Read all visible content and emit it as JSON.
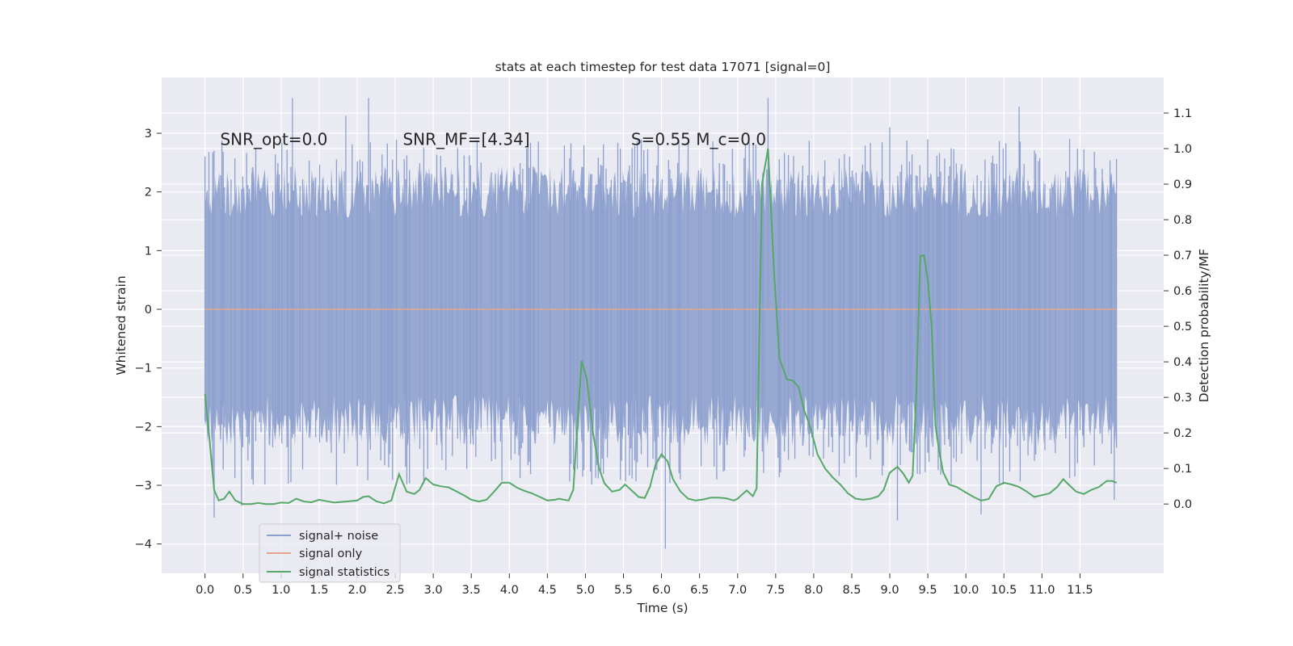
{
  "chart_data": {
    "type": "line",
    "title": "stats at each timestep for test data 17071 [signal=0]",
    "xlabel": "Time (s)",
    "ylabel": "Whitened strain",
    "y2label": "Detection probability/MF",
    "xlim": [
      -0.57,
      12.6
    ],
    "ylim": [
      -4.5,
      3.95
    ],
    "y2lim": [
      -0.195,
      1.2
    ],
    "x_ticks": [
      0.0,
      0.5,
      1.0,
      1.5,
      2.0,
      2.5,
      3.0,
      3.5,
      4.0,
      4.5,
      5.0,
      5.5,
      6.0,
      6.5,
      7.0,
      7.5,
      8.0,
      8.5,
      9.0,
      9.5,
      10.0,
      10.5,
      11.0,
      11.5
    ],
    "x_tick_labels": [
      "0.0",
      "0.5",
      "1.0",
      "1.5",
      "2.0",
      "2.5",
      "3.0",
      "3.5",
      "4.0",
      "4.5",
      "5.0",
      "5.5",
      "6.0",
      "6.5",
      "7.0",
      "7.5",
      "8.0",
      "8.5",
      "9.0",
      "9.5",
      "10.0",
      "10.5",
      "11.0",
      "11.5"
    ],
    "y_ticks": [
      -4,
      -3,
      -2,
      -1,
      0,
      1,
      2,
      3
    ],
    "y_tick_labels": [
      "−4",
      "−3",
      "−2",
      "−1",
      "0",
      "1",
      "2",
      "3"
    ],
    "y2_ticks": [
      0.0,
      0.1,
      0.2,
      0.3,
      0.4,
      0.5,
      0.6,
      0.7,
      0.8,
      0.9,
      1.0,
      1.1
    ],
    "y2_tick_labels": [
      "0.0",
      "0.1",
      "0.2",
      "0.3",
      "0.4",
      "0.5",
      "0.6",
      "0.7",
      "0.8",
      "0.9",
      "1.0",
      "1.1"
    ],
    "grid": true,
    "legend_position": "lower-left",
    "annotations": [
      {
        "text": "SNR_opt=0.0",
        "x": 0.2,
        "y": 2.8
      },
      {
        "text": "SNR_MF=[4.34]",
        "x": 2.6,
        "y": 2.8
      },
      {
        "text": "S=0.55   M_c=0.0",
        "x": 5.6,
        "y": 2.8
      }
    ],
    "series": [
      {
        "name": "signal+ noise",
        "color": "#8c9fd0",
        "axis": "left",
        "x_range": [
          0.0,
          11.98
        ],
        "approx_std": 0.9,
        "approx_range": [
          -4.08,
          3.6
        ],
        "notable_peaks": [
          {
            "x": 1.15,
            "y": 3.6
          },
          {
            "x": 1.85,
            "y": 3.3
          },
          {
            "x": 2.15,
            "y": 3.6
          },
          {
            "x": 7.4,
            "y": 3.6
          },
          {
            "x": 9.0,
            "y": 3.1
          },
          {
            "x": 10.7,
            "y": 3.45
          },
          {
            "x": 0.12,
            "y": -3.55
          },
          {
            "x": 0.48,
            "y": -3.35
          },
          {
            "x": 6.05,
            "y": -4.08
          },
          {
            "x": 9.1,
            "y": -3.6
          },
          {
            "x": 10.2,
            "y": -3.5
          },
          {
            "x": 11.95,
            "y": -3.25
          }
        ]
      },
      {
        "name": "signal only",
        "color": "#e4a58c",
        "axis": "left",
        "x": [
          0.0,
          11.98
        ],
        "y": [
          0.0,
          0.0
        ]
      },
      {
        "name": "signal statistics",
        "color": "#55a868",
        "axis": "right",
        "x": [
          0.0,
          0.06,
          0.12,
          0.18,
          0.25,
          0.32,
          0.4,
          0.5,
          0.6,
          0.7,
          0.8,
          0.9,
          1.0,
          1.1,
          1.2,
          1.3,
          1.4,
          1.5,
          1.6,
          1.7,
          1.8,
          1.9,
          2.0,
          2.08,
          2.15,
          2.25,
          2.35,
          2.45,
          2.55,
          2.65,
          2.75,
          2.82,
          2.9,
          3.0,
          3.1,
          3.2,
          3.3,
          3.4,
          3.5,
          3.6,
          3.7,
          3.8,
          3.9,
          4.0,
          4.1,
          4.2,
          4.3,
          4.4,
          4.5,
          4.6,
          4.65,
          4.72,
          4.78,
          4.84,
          4.9,
          4.95,
          5.02,
          5.1,
          5.18,
          5.25,
          5.35,
          5.45,
          5.52,
          5.6,
          5.7,
          5.78,
          5.85,
          5.92,
          6.0,
          6.08,
          6.15,
          6.25,
          6.35,
          6.45,
          6.55,
          6.65,
          6.75,
          6.85,
          6.95,
          7.0,
          7.05,
          7.12,
          7.2,
          7.25,
          7.32,
          7.4,
          7.48,
          7.55,
          7.65,
          7.72,
          7.8,
          7.88,
          7.95,
          8.05,
          8.15,
          8.25,
          8.35,
          8.45,
          8.55,
          8.65,
          8.75,
          8.85,
          8.92,
          9.0,
          9.1,
          9.18,
          9.25,
          9.3,
          9.35,
          9.4,
          9.45,
          9.5,
          9.55,
          9.6,
          9.65,
          9.7,
          9.78,
          9.88,
          9.98,
          10.1,
          10.2,
          10.3,
          10.4,
          10.5,
          10.6,
          10.7,
          10.8,
          10.9,
          11.0,
          11.1,
          11.2,
          11.28,
          11.35,
          11.45,
          11.55,
          11.65,
          11.75,
          11.85,
          11.92,
          11.98
        ],
        "y": [
          0.31,
          0.18,
          0.04,
          0.01,
          0.015,
          0.035,
          0.01,
          0.0,
          0.0,
          0.003,
          0.0,
          0.0,
          0.004,
          0.003,
          0.015,
          0.007,
          0.005,
          0.012,
          0.008,
          0.004,
          0.006,
          0.008,
          0.01,
          0.02,
          0.022,
          0.008,
          0.002,
          0.01,
          0.084,
          0.035,
          0.028,
          0.04,
          0.073,
          0.055,
          0.05,
          0.047,
          0.036,
          0.025,
          0.012,
          0.007,
          0.012,
          0.035,
          0.06,
          0.06,
          0.046,
          0.037,
          0.03,
          0.02,
          0.01,
          0.012,
          0.015,
          0.012,
          0.01,
          0.04,
          0.24,
          0.403,
          0.35,
          0.2,
          0.1,
          0.058,
          0.035,
          0.04,
          0.055,
          0.04,
          0.02,
          0.017,
          0.05,
          0.11,
          0.14,
          0.12,
          0.07,
          0.035,
          0.015,
          0.01,
          0.013,
          0.018,
          0.018,
          0.016,
          0.01,
          0.015,
          0.025,
          0.038,
          0.022,
          0.044,
          0.9,
          1.0,
          0.65,
          0.41,
          0.35,
          0.348,
          0.33,
          0.26,
          0.22,
          0.14,
          0.1,
          0.075,
          0.055,
          0.03,
          0.015,
          0.012,
          0.015,
          0.022,
          0.04,
          0.088,
          0.105,
          0.085,
          0.06,
          0.08,
          0.32,
          0.698,
          0.7,
          0.63,
          0.5,
          0.22,
          0.15,
          0.09,
          0.055,
          0.048,
          0.035,
          0.02,
          0.01,
          0.014,
          0.05,
          0.06,
          0.055,
          0.048,
          0.035,
          0.02,
          0.025,
          0.03,
          0.048,
          0.07,
          0.055,
          0.035,
          0.028,
          0.04,
          0.048,
          0.065,
          0.065,
          0.06
        ]
      }
    ]
  }
}
